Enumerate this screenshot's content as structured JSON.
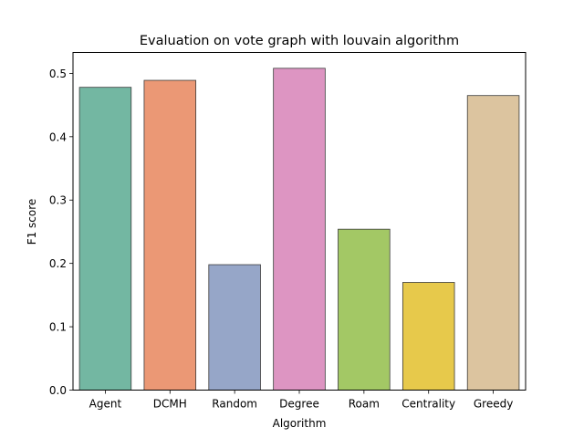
{
  "chart_data": {
    "type": "bar",
    "title": "Evaluation on vote graph with louvain algorithm",
    "xlabel": "Algorithm",
    "ylabel": "F1 score",
    "categories": [
      "Agent",
      "DCMH",
      "Random",
      "Degree",
      "Roam",
      "Centrality",
      "Greedy"
    ],
    "values": [
      0.478,
      0.489,
      0.198,
      0.508,
      0.254,
      0.17,
      0.465
    ],
    "colors": [
      "#73b7a2",
      "#eb9875",
      "#96a6c8",
      "#dd95c2",
      "#a3c865",
      "#e7c94b",
      "#dcc49f"
    ],
    "ylim": [
      0,
      0.533
    ],
    "yticks": [
      0.0,
      0.1,
      0.2,
      0.3,
      0.4,
      0.5
    ],
    "ytick_labels": [
      "0.0",
      "0.1",
      "0.2",
      "0.3",
      "0.4",
      "0.5"
    ],
    "grid": false,
    "legend": "none"
  }
}
